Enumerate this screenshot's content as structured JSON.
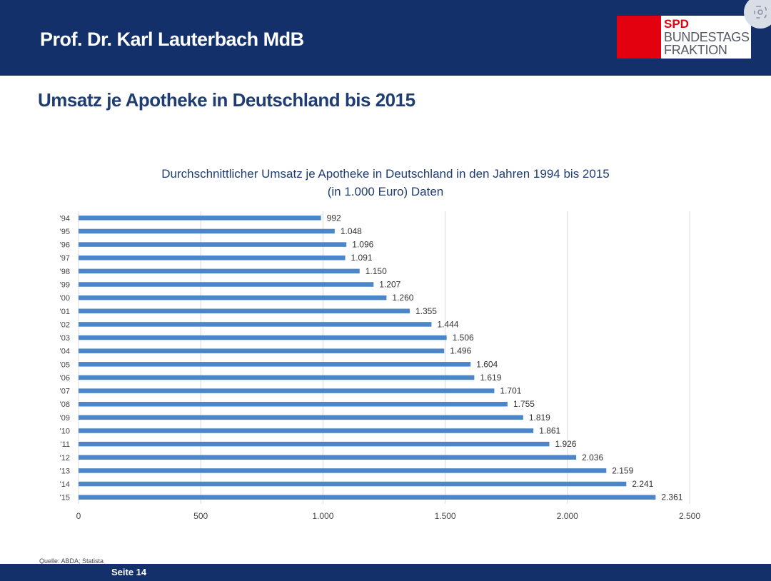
{
  "header": {
    "author": "Prof. Dr. Karl Lauterbach MdB",
    "logo": {
      "party": "SPD",
      "line1": "BUNDESTAGS",
      "line2": "FRAKTION"
    }
  },
  "slide": {
    "title": "Umsatz je Apotheke in Deutschland bis 2015",
    "source": "Quelle: ABDA; Statista",
    "page": "Seite 14"
  },
  "colors": {
    "band": "#13306a",
    "bar": "#4a86c8",
    "title": "#1f3d73",
    "spd_red": "#e3000f"
  },
  "chart_data": {
    "type": "bar",
    "orientation": "horizontal",
    "title": "Durchschnittlicher Umsatz je Apotheke in Deutschland in den Jahren 1994 bis 2015",
    "subtitle": "(in 1.000 Euro) Daten",
    "categories": [
      "'94",
      "'95",
      "'96",
      "'97",
      "'98",
      "'99",
      "'00",
      "'01",
      "'02",
      "'03",
      "'04",
      "'05",
      "'06",
      "'07",
      "'08",
      "'09",
      "'10",
      "'11",
      "'12",
      "'13",
      "'14",
      "'15"
    ],
    "values": [
      992,
      1048,
      1096,
      1091,
      1150,
      1207,
      1260,
      1355,
      1444,
      1506,
      1496,
      1604,
      1619,
      1701,
      1755,
      1819,
      1861,
      1926,
      2036,
      2159,
      2241,
      2361
    ],
    "value_labels": [
      "992",
      "1.048",
      "1.096",
      "1.091",
      "1.150",
      "1.207",
      "1.260",
      "1.355",
      "1.444",
      "1.506",
      "1.496",
      "1.604",
      "1.619",
      "1.701",
      "1.755",
      "1.819",
      "1.861",
      "1.926",
      "2.036",
      "2.159",
      "2.241",
      "2.361"
    ],
    "xlim": [
      0,
      2500
    ],
    "xticks": [
      0,
      500,
      1000,
      1500,
      2000,
      2500
    ],
    "xtick_labels": [
      "0",
      "500",
      "1.000",
      "1.500",
      "2.000",
      "2.500"
    ],
    "grid": "vertical"
  }
}
